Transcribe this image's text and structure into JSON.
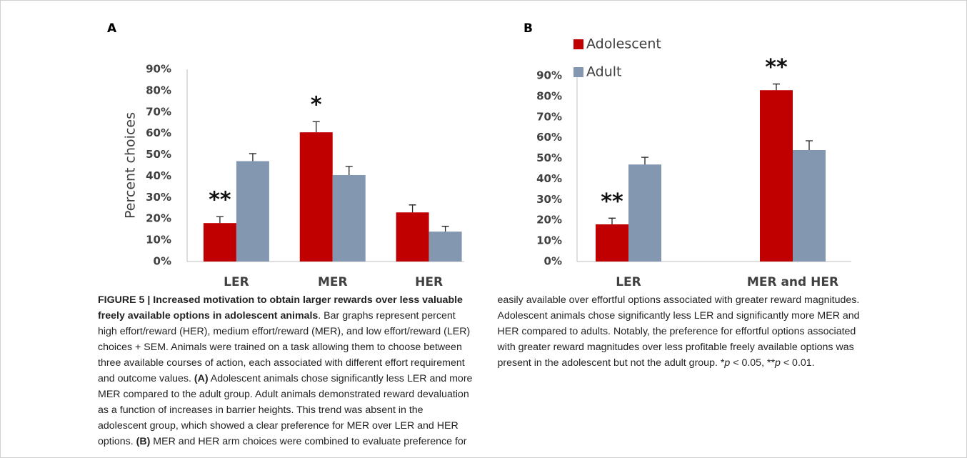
{
  "chart_data": [
    {
      "type": "bar",
      "panel": "A",
      "ylabel": "Percent choices",
      "categories": [
        "LER",
        "MER",
        "HER"
      ],
      "series": [
        {
          "color": "#c00000",
          "values": [
            18,
            60.5,
            23
          ],
          "errors": [
            3,
            5,
            3.5
          ],
          "annotations": [
            "**",
            "*",
            null
          ]
        },
        {
          "color": "#8497b0",
          "values": [
            47,
            40.5,
            14
          ],
          "errors": [
            3.5,
            4,
            2.5
          ]
        }
      ],
      "ylim": [
        0,
        90
      ],
      "yticks": [
        {
          "value": 0,
          "label": "0%"
        },
        {
          "value": 10,
          "label": "10%"
        },
        {
          "value": 20,
          "label": "20%"
        },
        {
          "value": 30,
          "label": "30%"
        },
        {
          "value": 40,
          "label": "40%"
        },
        {
          "value": 50,
          "label": "50%"
        },
        {
          "value": 60,
          "label": "60%"
        },
        {
          "value": 70,
          "label": "70%"
        },
        {
          "value": 80,
          "label": "80%"
        },
        {
          "value": 90,
          "label": "90%"
        }
      ],
      "legend": false
    },
    {
      "type": "bar",
      "panel": "B",
      "categories": [
        "LER",
        "MER and HER"
      ],
      "series": [
        {
          "name": "Adolescent",
          "color": "#c00000",
          "values": [
            18,
            83
          ],
          "errors": [
            3,
            3
          ],
          "annotations": [
            "**",
            "**"
          ]
        },
        {
          "name": "Adult",
          "color": "#8497b0",
          "values": [
            47,
            54
          ],
          "errors": [
            3.5,
            4.5
          ]
        }
      ],
      "ylim": [
        0,
        90
      ],
      "yticks": [
        {
          "value": 0,
          "label": "0%"
        },
        {
          "value": 10,
          "label": "10%"
        },
        {
          "value": 20,
          "label": "20%"
        },
        {
          "value": 30,
          "label": "30%"
        },
        {
          "value": 40,
          "label": "40%"
        },
        {
          "value": 50,
          "label": "50%"
        },
        {
          "value": 60,
          "label": "60%"
        },
        {
          "value": 70,
          "label": "70%"
        },
        {
          "value": 80,
          "label": "80%"
        },
        {
          "value": 90,
          "label": "90%"
        }
      ],
      "legend": "top-left"
    }
  ],
  "caption": [
    {
      "text": "FIGURE 5 | Increased motivation to obtain larger rewards over less valuable freely available options in adolescent animals",
      "style": "bold"
    },
    {
      "text": ". Bar graphs represent percent high effort/reward (HER), medium effort/reward (MER), and low effort/reward (LER) choices + SEM. Animals were trained on a task allowing them to choose between three available courses of action, each associated with different effort requirement and outcome values. "
    },
    {
      "text": "(A)",
      "style": "bold"
    },
    {
      "text": " Adolescent animals chose significantly less LER and more MER compared to the adult group. Adult animals demonstrated reward devaluation as a function of increases in barrier heights. This trend was absent in the adolescent group, which showed a clear preference for MER over LER and HER options. "
    },
    {
      "text": "(B)",
      "style": "bold"
    },
    {
      "text": " MER and HER arm choices were combined to evaluate preference for easily available over effortful options associated with greater reward magnitudes. Adolescent animals chose significantly less LER and significantly more MER and HER compared to adults. Notably, the preference for effortful options associated with greater reward magnitudes over less profitable freely available options was present in the adolescent but not the adult group. "
    },
    {
      "text": "*"
    },
    {
      "text": "p",
      "style": "italic"
    },
    {
      "text": " < 0.05, **"
    },
    {
      "text": "p",
      "style": "italic"
    },
    {
      "text": " < 0.01."
    }
  ]
}
